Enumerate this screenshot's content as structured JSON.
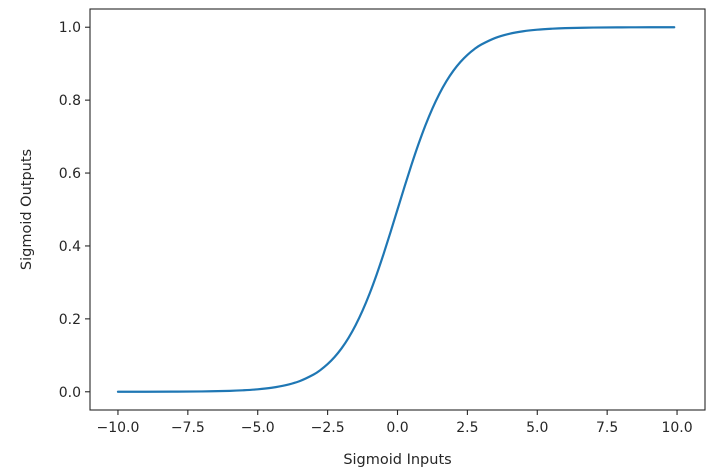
{
  "chart_data": {
    "type": "line",
    "title": "",
    "xlabel": "Sigmoid Inputs",
    "ylabel": "Sigmoid Outputs",
    "xlim": [
      -11.0,
      11.0
    ],
    "ylim": [
      -0.05,
      1.05
    ],
    "x_ticks": [
      -10.0,
      -7.5,
      -5.0,
      -2.5,
      0.0,
      2.5,
      5.0,
      7.5,
      10.0
    ],
    "x_tick_labels": [
      "−10.0",
      "−7.5",
      "−5.0",
      "−2.5",
      "0.0",
      "2.5",
      "5.0",
      "7.5",
      "10.0"
    ],
    "y_ticks": [
      0.0,
      0.2,
      0.4,
      0.6,
      0.8,
      1.0
    ],
    "y_tick_labels": [
      "0.0",
      "0.2",
      "0.4",
      "0.6",
      "0.8",
      "1.0"
    ],
    "grid": false,
    "legend": "none",
    "line_color": "#1f77b4",
    "series": [
      {
        "x": [
          -10.0,
          -9.0,
          -8.0,
          -7.0,
          -6.0,
          -5.5,
          -5.0,
          -4.5,
          -4.0,
          -3.5,
          -3.0,
          -2.75,
          -2.5,
          -2.25,
          -2.0,
          -1.75,
          -1.5,
          -1.25,
          -1.0,
          -0.75,
          -0.5,
          -0.25,
          0.0,
          0.25,
          0.5,
          0.75,
          1.0,
          1.25,
          1.5,
          1.75,
          2.0,
          2.25,
          2.5,
          2.75,
          3.0,
          3.5,
          4.0,
          4.5,
          5.0,
          5.5,
          6.0,
          7.0,
          8.0,
          9.0,
          9.9
        ],
        "y": [
          0.0,
          0.0001,
          0.0003,
          0.0009,
          0.0025,
          0.0041,
          0.0067,
          0.011,
          0.018,
          0.0293,
          0.0474,
          0.0601,
          0.0759,
          0.0953,
          0.1192,
          0.148,
          0.1824,
          0.2227,
          0.2689,
          0.3208,
          0.3775,
          0.4378,
          0.5,
          0.5622,
          0.6225,
          0.6792,
          0.7311,
          0.7773,
          0.8176,
          0.852,
          0.8808,
          0.9047,
          0.9241,
          0.9399,
          0.9526,
          0.9707,
          0.982,
          0.989,
          0.9933,
          0.9959,
          0.9975,
          0.9991,
          0.9997,
          0.9999,
          1.0
        ]
      }
    ]
  }
}
